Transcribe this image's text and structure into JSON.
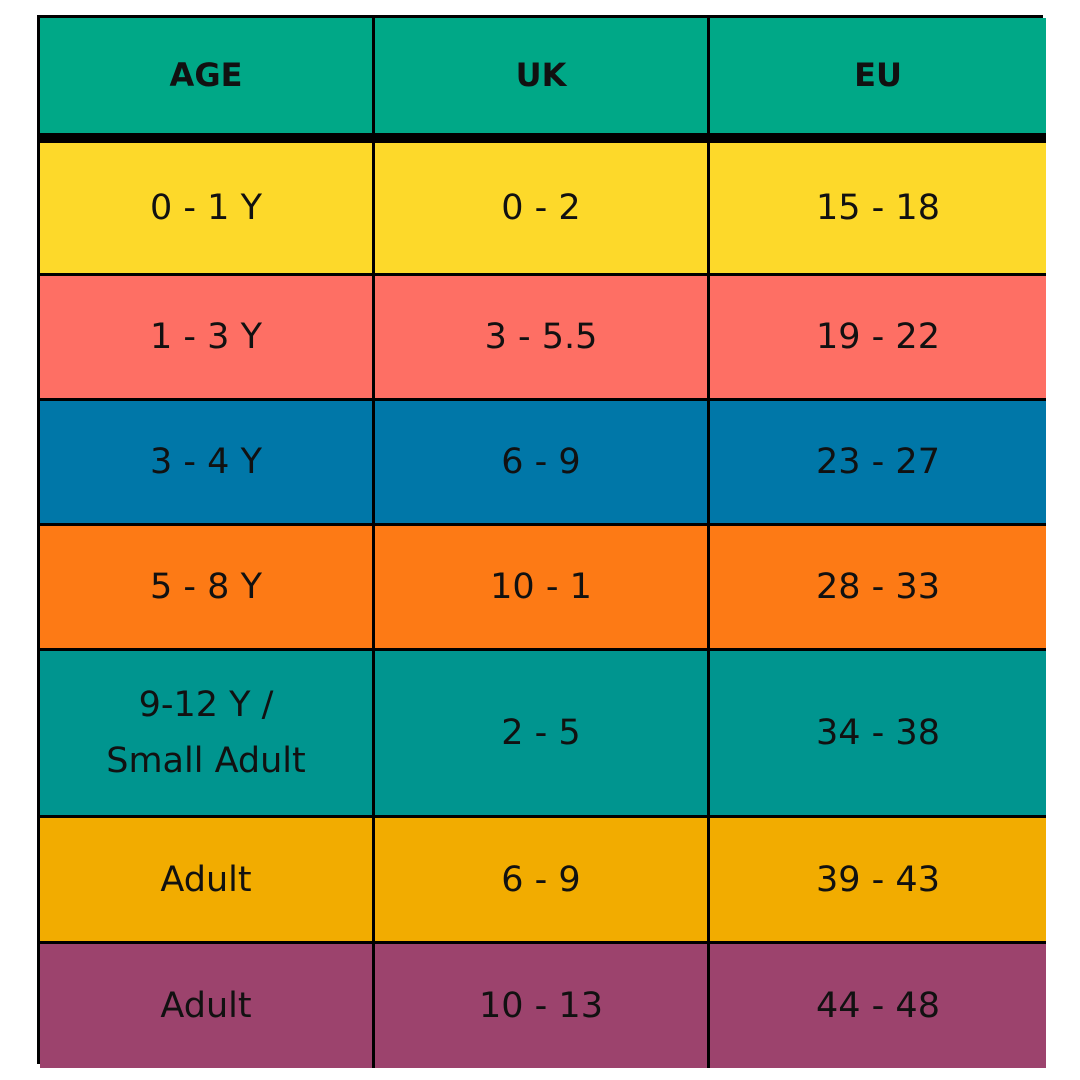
{
  "table": {
    "headers": [
      "AGE",
      "UK",
      "EU"
    ],
    "rows": [
      [
        "0 - 1 Y",
        "0 - 2",
        "15 - 18"
      ],
      [
        "1 - 3 Y",
        "3 - 5.5",
        "19 - 22"
      ],
      [
        "3 - 4 Y",
        "6 - 9",
        "23 - 27"
      ],
      [
        "5 - 8 Y",
        "10 - 1",
        "28 - 33"
      ],
      [
        "9-12 Y /\nSmall Adult",
        "2 - 5",
        "34 - 38"
      ],
      [
        "Adult",
        "6 - 9",
        "39 - 43"
      ],
      [
        "Adult",
        "10 - 13",
        "44 - 48"
      ]
    ]
  }
}
